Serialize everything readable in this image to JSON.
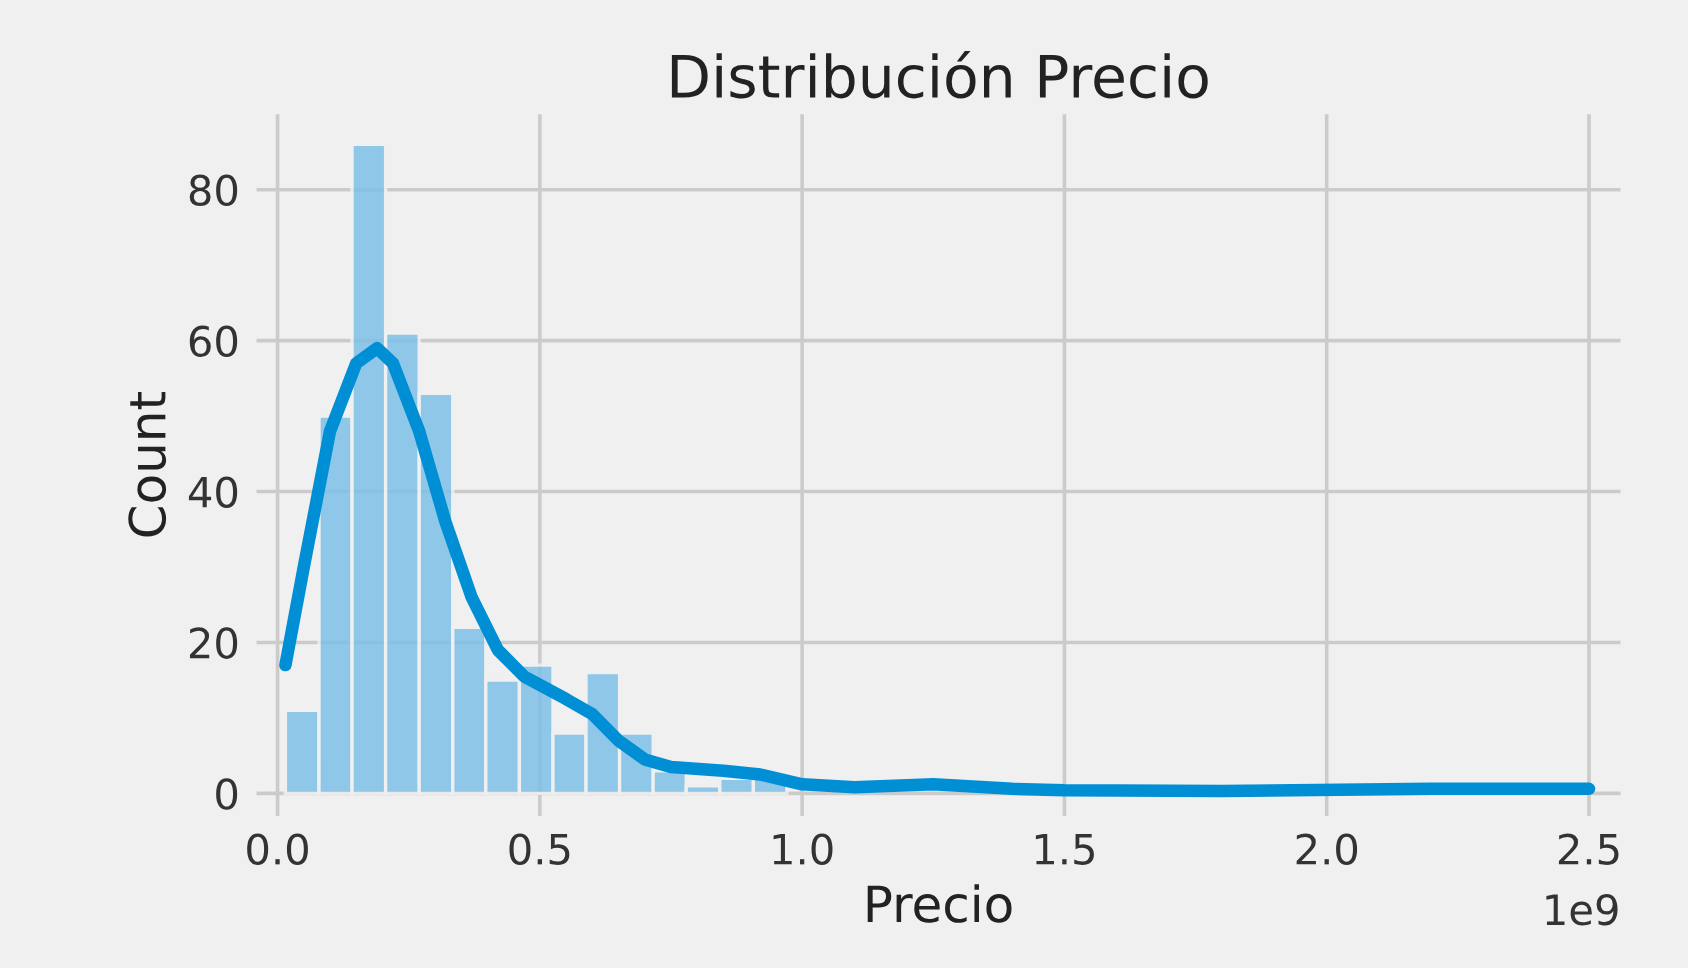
{
  "chart_data": {
    "type": "histogram",
    "title": "Distribución Precio",
    "xlabel": "Precio",
    "ylabel": "Count",
    "bins": [
      0.015,
      0.079,
      0.142,
      0.206,
      0.27,
      0.334,
      0.397,
      0.461,
      0.525,
      0.588,
      0.652,
      0.716,
      0.779,
      0.843,
      0.907,
      0.971
    ],
    "values": [
      11,
      50,
      86,
      61,
      53,
      22,
      15,
      17,
      8,
      16,
      8,
      3,
      1,
      2,
      2
    ],
    "color": "#7dc0e6",
    "series": [
      {
        "type": "line",
        "color": "#008fd5",
        "x": [
          0.015,
          0.05,
          0.1,
          0.15,
          0.19,
          0.22,
          0.27,
          0.32,
          0.37,
          0.42,
          0.47,
          0.55,
          0.6,
          0.65,
          0.7,
          0.75,
          0.85,
          0.92,
          1.0,
          1.1,
          1.25,
          1.4,
          1.5,
          1.8,
          2.2,
          2.5
        ],
        "values": [
          17,
          30,
          48,
          57,
          59,
          57,
          48,
          36,
          26,
          19,
          15.5,
          12.5,
          10.5,
          7,
          4.5,
          3.5,
          3,
          2.5,
          1.2,
          0.8,
          1.2,
          0.6,
          0.4,
          0.3,
          0.6,
          0.6
        ]
      }
    ],
    "xlim": [
      -0.04,
      2.56
    ],
    "ylim": [
      -3,
      90
    ],
    "xticks": [
      {
        "value": 0,
        "label": "0.0"
      },
      0.5,
      {
        "value": 1,
        "label": "1.0"
      },
      1.5,
      {
        "value": 2,
        "label": "2.0"
      },
      2.5
    ],
    "yticks": [
      0,
      20,
      40,
      60,
      80
    ],
    "annotations": [
      "1e9"
    ],
    "grid": true
  }
}
